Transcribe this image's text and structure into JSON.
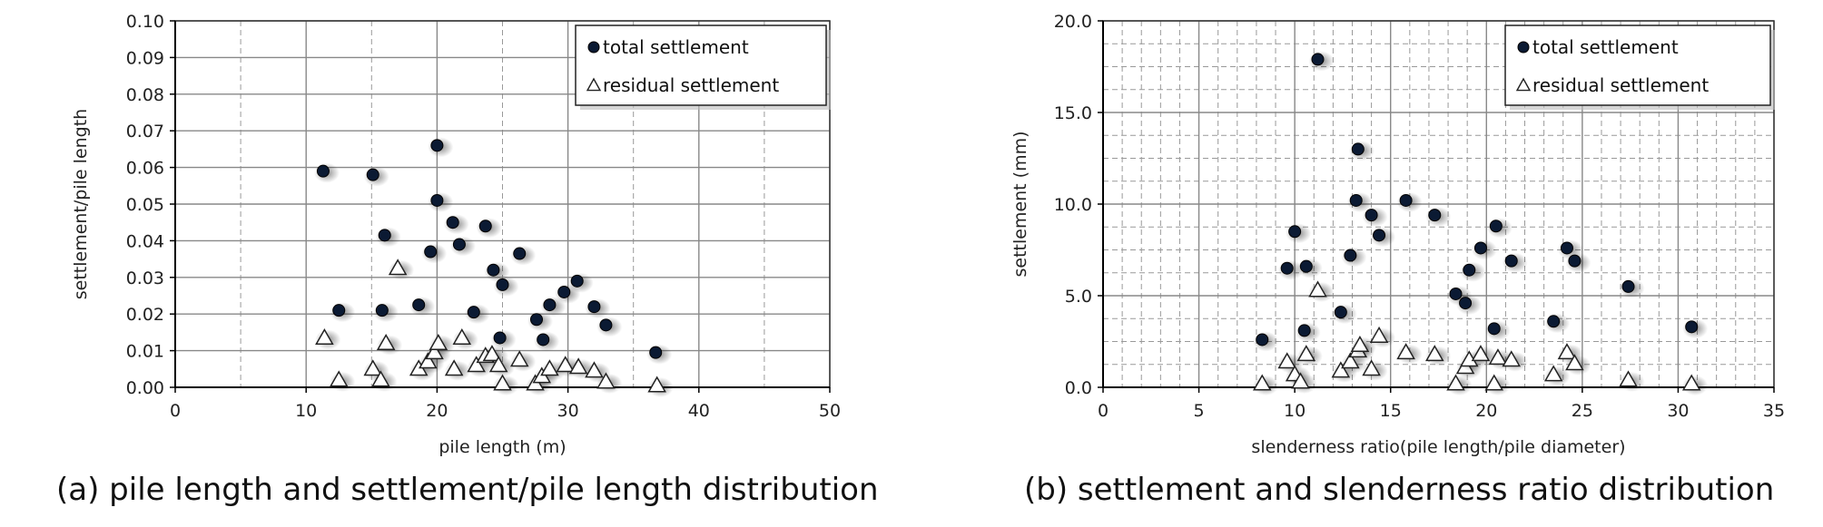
{
  "captions": {
    "a": "(a) pile length and settlement/pile length distribution",
    "b": "(b) settlement and slenderness ratio distribution"
  },
  "colors": {
    "point": "#0b1a33",
    "grid": "#888888",
    "frame": "#333333"
  },
  "chart_data": [
    {
      "type": "scatter",
      "xlabel": "pile length (m)",
      "ylabel": "settlement/pile length",
      "xlim": [
        0,
        50
      ],
      "ylim": [
        0,
        0.1
      ],
      "xticks": [
        0,
        10,
        20,
        30,
        40,
        50
      ],
      "yticks": [
        0,
        0.01,
        0.02,
        0.03,
        0.04,
        0.05,
        0.06,
        0.07,
        0.08,
        0.09,
        0.1
      ],
      "ytick_labels": [
        "0.00",
        "0.01",
        "0.02",
        "0.03",
        "0.04",
        "0.05",
        "0.06",
        "0.07",
        "0.08",
        "0.09",
        "0.10"
      ],
      "grid": true,
      "legend_position": "top-right",
      "series": [
        {
          "name": "total settlement",
          "marker": "filled-circle",
          "points": [
            [
              11.3,
              0.059
            ],
            [
              12.5,
              0.021
            ],
            [
              15.1,
              0.058
            ],
            [
              15.8,
              0.021
            ],
            [
              16.0,
              0.0415
            ],
            [
              18.6,
              0.0225
            ],
            [
              19.5,
              0.037
            ],
            [
              20.0,
              0.066
            ],
            [
              20.0,
              0.051
            ],
            [
              21.2,
              0.045
            ],
            [
              21.7,
              0.039
            ],
            [
              22.8,
              0.0205
            ],
            [
              23.7,
              0.044
            ],
            [
              24.3,
              0.032
            ],
            [
              24.8,
              0.0135
            ],
            [
              25.0,
              0.028
            ],
            [
              26.3,
              0.0365
            ],
            [
              27.6,
              0.0185
            ],
            [
              28.1,
              0.013
            ],
            [
              28.6,
              0.0225
            ],
            [
              29.7,
              0.026
            ],
            [
              30.7,
              0.029
            ],
            [
              32.0,
              0.022
            ],
            [
              32.9,
              0.017
            ],
            [
              36.7,
              0.0095
            ]
          ]
        },
        {
          "name": "residual settlement",
          "marker": "open-triangle",
          "points": [
            [
              11.4,
              0.0135
            ],
            [
              12.5,
              0.002
            ],
            [
              15.1,
              0.005
            ],
            [
              15.7,
              0.002
            ],
            [
              16.1,
              0.012
            ],
            [
              17.0,
              0.0325
            ],
            [
              18.6,
              0.005
            ],
            [
              19.3,
              0.007
            ],
            [
              19.8,
              0.0095
            ],
            [
              20.1,
              0.012
            ],
            [
              21.3,
              0.005
            ],
            [
              21.9,
              0.0135
            ],
            [
              23.0,
              0.006
            ],
            [
              23.7,
              0.0085
            ],
            [
              24.2,
              0.009
            ],
            [
              24.7,
              0.006
            ],
            [
              25.0,
              0.001
            ],
            [
              26.3,
              0.0075
            ],
            [
              27.5,
              0.001
            ],
            [
              28.0,
              0.003
            ],
            [
              28.6,
              0.005
            ],
            [
              29.8,
              0.006
            ],
            [
              30.8,
              0.0055
            ],
            [
              32.0,
              0.0045
            ],
            [
              32.9,
              0.0015
            ],
            [
              36.8,
              0.0005
            ]
          ]
        }
      ]
    },
    {
      "type": "scatter",
      "xlabel": "slenderness ratio(pile length/pile diameter)",
      "ylabel": "settlement (mm)",
      "xlim": [
        0,
        35
      ],
      "ylim": [
        0,
        20
      ],
      "xticks": [
        0,
        5,
        10,
        15,
        20,
        25,
        30,
        35
      ],
      "yticks": [
        0,
        5,
        10,
        15,
        20
      ],
      "ytick_labels": [
        "0.0",
        "5.0",
        "10.0",
        "15.0",
        "20.0"
      ],
      "grid": true,
      "legend_position": "top-right",
      "series": [
        {
          "name": "total settlement",
          "marker": "filled-circle",
          "points": [
            [
              8.3,
              2.6
            ],
            [
              9.6,
              6.5
            ],
            [
              10.0,
              8.5
            ],
            [
              10.5,
              3.1
            ],
            [
              10.6,
              6.6
            ],
            [
              11.2,
              17.9
            ],
            [
              12.4,
              4.1
            ],
            [
              12.9,
              7.2
            ],
            [
              13.2,
              10.2
            ],
            [
              13.3,
              13.0
            ],
            [
              14.0,
              9.4
            ],
            [
              14.4,
              8.3
            ],
            [
              15.8,
              10.2
            ],
            [
              17.3,
              9.4
            ],
            [
              18.4,
              5.1
            ],
            [
              18.9,
              4.6
            ],
            [
              19.1,
              6.4
            ],
            [
              19.7,
              7.6
            ],
            [
              20.4,
              3.2
            ],
            [
              20.5,
              8.8
            ],
            [
              21.3,
              6.9
            ],
            [
              23.5,
              3.6
            ],
            [
              24.2,
              7.6
            ],
            [
              24.6,
              6.9
            ],
            [
              27.4,
              5.5
            ],
            [
              30.7,
              3.3
            ]
          ]
        },
        {
          "name": "residual settlement",
          "marker": "open-triangle",
          "points": [
            [
              8.3,
              0.2
            ],
            [
              9.6,
              1.4
            ],
            [
              10.0,
              0.7
            ],
            [
              10.3,
              0.3
            ],
            [
              10.6,
              1.8
            ],
            [
              11.2,
              5.3
            ],
            [
              12.4,
              0.9
            ],
            [
              12.9,
              1.4
            ],
            [
              13.3,
              2.0
            ],
            [
              13.4,
              2.3
            ],
            [
              14.0,
              1.0
            ],
            [
              14.4,
              2.8
            ],
            [
              15.8,
              1.9
            ],
            [
              17.3,
              1.8
            ],
            [
              18.4,
              0.2
            ],
            [
              18.9,
              1.1
            ],
            [
              19.1,
              1.5
            ],
            [
              19.7,
              1.8
            ],
            [
              20.4,
              0.2
            ],
            [
              20.6,
              1.6
            ],
            [
              21.3,
              1.5
            ],
            [
              23.5,
              0.7
            ],
            [
              24.2,
              1.9
            ],
            [
              24.6,
              1.3
            ],
            [
              27.4,
              0.4
            ],
            [
              30.7,
              0.2
            ]
          ]
        }
      ]
    }
  ]
}
